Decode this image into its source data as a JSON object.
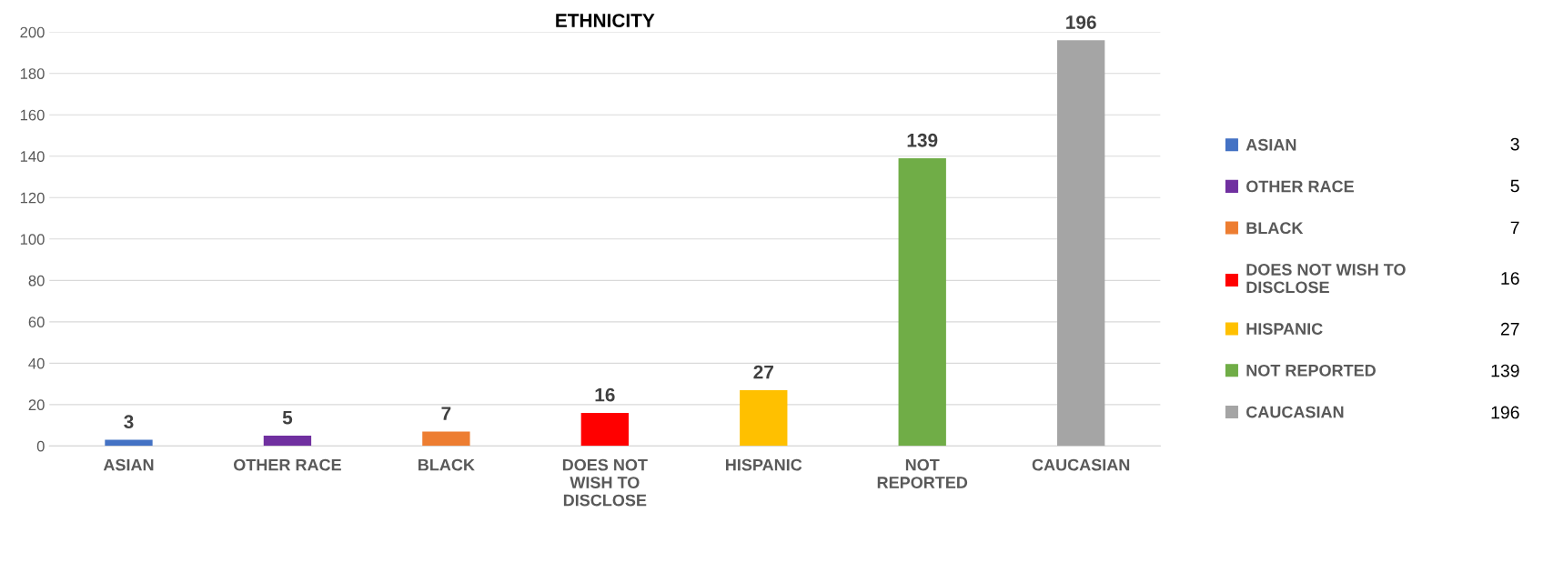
{
  "chart_data": [
    {
      "type": "bar",
      "title": "ETHNICITY",
      "categories": [
        "ASIAN",
        "OTHER RACE",
        "BLACK",
        "DOES NOT WISH TO DISCLOSE",
        "HISPANIC",
        "NOT REPORTED",
        "CAUCASIAN"
      ],
      "series": [
        {
          "name": "ASIAN",
          "color": "#4472c4",
          "values": [
            3,
            null,
            null,
            null,
            null,
            null,
            null
          ]
        },
        {
          "name": "OTHER RACE",
          "color": "#7030a0",
          "values": [
            null,
            5,
            null,
            null,
            null,
            null,
            null
          ]
        },
        {
          "name": "BLACK",
          "color": "#ed7d31",
          "values": [
            null,
            null,
            7,
            null,
            null,
            null,
            null
          ]
        },
        {
          "name": "DOES NOT WISH TO DISCLOSE",
          "color": "#ff0000",
          "values": [
            null,
            null,
            null,
            16,
            null,
            null,
            null
          ]
        },
        {
          "name": "HISPANIC",
          "color": "#ffc000",
          "values": [
            null,
            null,
            null,
            null,
            27,
            null,
            null
          ]
        },
        {
          "name": "NOT REPORTED",
          "color": "#70ad47",
          "values": [
            null,
            null,
            null,
            null,
            null,
            139,
            null
          ]
        },
        {
          "name": "CAUCASIAN",
          "color": "#a5a5a5",
          "values": [
            null,
            null,
            null,
            null,
            null,
            null,
            196
          ]
        }
      ],
      "ylim": [
        0,
        200
      ],
      "yticks": [
        0,
        20,
        40,
        60,
        80,
        100,
        120,
        140,
        160,
        180,
        200
      ],
      "grid": "y",
      "data_labels": true,
      "legend": "right"
    },
    {
      "type": "other",
      "annotations": [
        "3",
        "5",
        "7",
        "16",
        "27",
        "139",
        "196"
      ]
    }
  ]
}
